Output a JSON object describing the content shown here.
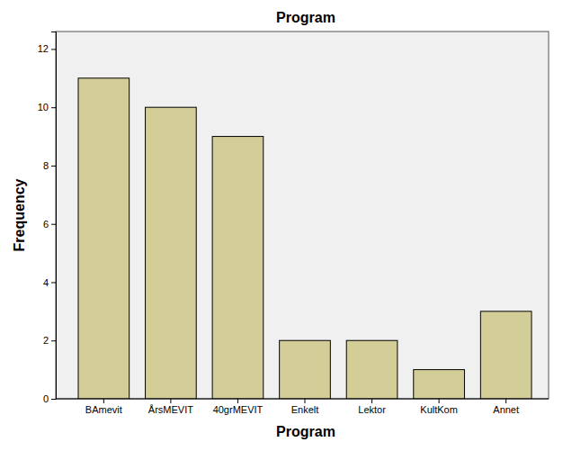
{
  "chart_data": {
    "type": "bar",
    "title": "Program",
    "x_label": "Program",
    "y_label": "Frequency",
    "categories": [
      "BAmevit",
      "ÅrsMEVIT",
      "40grMEVIT",
      "Enkelt",
      "Lektor",
      "KultKom",
      "Annet"
    ],
    "values": [
      11,
      10,
      9,
      2,
      2,
      1,
      3
    ],
    "color": "#d3ce97",
    "ylim": [
      0,
      12.6
    ],
    "yticks": [
      0,
      2,
      4,
      6,
      8,
      10,
      12
    ],
    "grid": false
  }
}
